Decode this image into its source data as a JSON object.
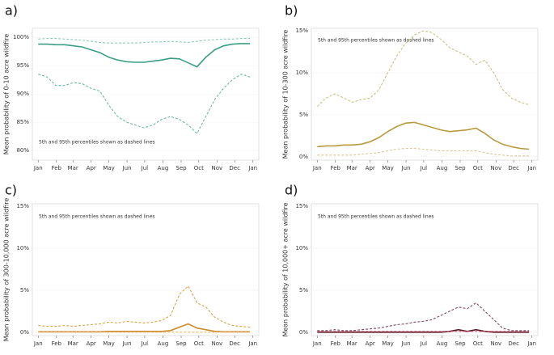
{
  "chart_data": [
    {
      "type": "line",
      "label": "a)",
      "y_label": "Mean probability of 0-10 acre wildfire",
      "annotation": "5th and 95th percentiles shown as dashed lines",
      "x": [
        0,
        15,
        30,
        45,
        60,
        75,
        90,
        105,
        120,
        135,
        150,
        165,
        180,
        195,
        210,
        225,
        240,
        255,
        270,
        285,
        300,
        315,
        330,
        345,
        360
      ],
      "xlim": [
        -10,
        375
      ],
      "xticks": [
        {
          "value": 0,
          "label": "Jan"
        },
        {
          "value": 31,
          "label": "Feb"
        },
        {
          "value": 59,
          "label": "Mar"
        },
        {
          "value": 90,
          "label": "Apr"
        },
        {
          "value": 120,
          "label": "May"
        },
        {
          "value": 151,
          "label": "Jun"
        },
        {
          "value": 181,
          "label": "Jul"
        },
        {
          "value": 212,
          "label": "Aug"
        },
        {
          "value": 243,
          "label": "Sep"
        },
        {
          "value": 273,
          "label": "Oct"
        },
        {
          "value": 304,
          "label": "Nov"
        },
        {
          "value": 334,
          "label": "Dec"
        },
        {
          "value": 365,
          "label": "Jan"
        }
      ],
      "ylim": [
        78.3,
        101.6
      ],
      "yticks": [
        {
          "value": 80,
          "label": "80%"
        },
        {
          "value": 85,
          "label": "85%"
        },
        {
          "value": 90,
          "label": "90%"
        },
        {
          "value": 95,
          "label": "95%"
        },
        {
          "value": 100,
          "label": "100%"
        }
      ],
      "grid": true,
      "series": [
        {
          "color": "#8ccbbd",
          "dashed": true,
          "values": [
            99.7,
            99.8,
            99.8,
            99.7,
            99.6,
            99.5,
            99.3,
            99.1,
            99.0,
            99.0,
            99.0,
            99.0,
            99.1,
            99.2,
            99.2,
            99.3,
            99.2,
            99.1,
            99.3,
            99.5,
            99.6,
            99.7,
            99.7,
            99.8,
            99.8
          ]
        },
        {
          "color": "#3a9e86",
          "dashed": false,
          "values": [
            98.8,
            98.8,
            98.7,
            98.7,
            98.5,
            98.3,
            97.8,
            97.3,
            96.5,
            96.0,
            95.7,
            95.6,
            95.6,
            95.8,
            96.0,
            96.3,
            96.2,
            95.5,
            94.8,
            96.5,
            97.8,
            98.5,
            98.8,
            98.9,
            98.9
          ]
        },
        {
          "color": "#6db8a8",
          "dashed": true,
          "values": [
            93.5,
            93.0,
            91.5,
            91.5,
            92.0,
            91.8,
            91.0,
            90.5,
            88.0,
            86.0,
            85.0,
            84.5,
            84.0,
            84.5,
            85.5,
            86.0,
            85.5,
            84.5,
            83.0,
            86.0,
            89.0,
            91.0,
            92.5,
            93.5,
            93.0
          ]
        }
      ]
    },
    {
      "type": "line",
      "label": "b)",
      "y_label": "Mean probability of 10-300 acre wildfire",
      "annotation": "5th and 95th percentiles shown as dashed lines",
      "x": [
        0,
        15,
        30,
        45,
        60,
        75,
        90,
        105,
        120,
        135,
        150,
        165,
        180,
        195,
        210,
        225,
        240,
        255,
        270,
        285,
        300,
        315,
        330,
        345,
        360
      ],
      "xlim": [
        -10,
        375
      ],
      "xticks": [
        {
          "value": 0,
          "label": "Jan"
        },
        {
          "value": 31,
          "label": "Feb"
        },
        {
          "value": 59,
          "label": "Mar"
        },
        {
          "value": 90,
          "label": "Apr"
        },
        {
          "value": 120,
          "label": "May"
        },
        {
          "value": 151,
          "label": "Jun"
        },
        {
          "value": 181,
          "label": "Jul"
        },
        {
          "value": 212,
          "label": "Aug"
        },
        {
          "value": 243,
          "label": "Sep"
        },
        {
          "value": 273,
          "label": "Oct"
        },
        {
          "value": 304,
          "label": "Nov"
        },
        {
          "value": 334,
          "label": "Dec"
        },
        {
          "value": 365,
          "label": "Jan"
        }
      ],
      "ylim": [
        -0.4,
        15.3
      ],
      "yticks": [
        {
          "value": 0,
          "label": "0%"
        },
        {
          "value": 5,
          "label": "5%"
        },
        {
          "value": 10,
          "label": "10%"
        },
        {
          "value": 15,
          "label": "15%"
        }
      ],
      "grid": true,
      "series": [
        {
          "color": "#c9c27e",
          "dashed": true,
          "values": [
            6,
            7,
            7.5,
            7,
            6.5,
            6.8,
            7,
            8,
            10,
            12,
            13.5,
            14.5,
            15,
            14.8,
            14,
            13,
            12.5,
            12,
            11,
            11.5,
            10,
            8,
            7,
            6.5,
            6.2
          ]
        },
        {
          "color": "#b89a3e",
          "dashed": false,
          "values": [
            1.2,
            1.3,
            1.3,
            1.4,
            1.4,
            1.5,
            1.8,
            2.3,
            3.0,
            3.6,
            4,
            4.1,
            3.8,
            3.5,
            3.2,
            3.0,
            3.1,
            3.2,
            3.4,
            2.8,
            2.0,
            1.5,
            1.2,
            1.0,
            0.9
          ]
        },
        {
          "color": "#dcc99a",
          "dashed": true,
          "values": [
            0.2,
            0.2,
            0.2,
            0.2,
            0.2,
            0.3,
            0.4,
            0.5,
            0.7,
            0.9,
            1.0,
            1.0,
            0.9,
            0.8,
            0.7,
            0.7,
            0.7,
            0.7,
            0.7,
            0.5,
            0.3,
            0.2,
            0.1,
            0.1,
            0.1
          ]
        }
      ]
    },
    {
      "type": "line",
      "label": "c)",
      "y_label": "Mean probability of 300-10,000 acre wildfire",
      "annotation": "5th and 95th percentiles shown as dashed lines",
      "x": [
        0,
        15,
        30,
        45,
        60,
        75,
        90,
        105,
        120,
        135,
        150,
        165,
        180,
        195,
        210,
        225,
        240,
        255,
        270,
        285,
        300,
        315,
        330,
        345,
        360
      ],
      "xlim": [
        -10,
        375
      ],
      "xticks": [
        {
          "value": 0,
          "label": "Jan"
        },
        {
          "value": 31,
          "label": "Feb"
        },
        {
          "value": 59,
          "label": "Mar"
        },
        {
          "value": 90,
          "label": "Apr"
        },
        {
          "value": 120,
          "label": "May"
        },
        {
          "value": 151,
          "label": "Jun"
        },
        {
          "value": 181,
          "label": "Jul"
        },
        {
          "value": 212,
          "label": "Aug"
        },
        {
          "value": 243,
          "label": "Sep"
        },
        {
          "value": 273,
          "label": "Oct"
        },
        {
          "value": 304,
          "label": "Nov"
        },
        {
          "value": 334,
          "label": "Dec"
        },
        {
          "value": 365,
          "label": "Jan"
        }
      ],
      "ylim": [
        -0.4,
        15.3
      ],
      "yticks": [
        {
          "value": 0,
          "label": "0%"
        },
        {
          "value": 5,
          "label": "5%"
        },
        {
          "value": 10,
          "label": "10%"
        },
        {
          "value": 15,
          "label": "15%"
        }
      ],
      "grid": true,
      "series": [
        {
          "color": "#d9a64a",
          "dashed": true,
          "values": [
            0.8,
            0.7,
            0.7,
            0.8,
            0.7,
            0.8,
            0.9,
            1.0,
            1.2,
            1.1,
            1.3,
            1.2,
            1.1,
            1.2,
            1.4,
            2.0,
            4.5,
            5.5,
            3.5,
            3.0,
            1.8,
            1.2,
            0.8,
            0.7,
            0.6
          ]
        },
        {
          "color": "#d08a2a",
          "dashed": false,
          "values": [
            0.05,
            0.05,
            0.05,
            0.05,
            0.05,
            0.05,
            0.05,
            0.05,
            0.1,
            0.1,
            0.1,
            0.1,
            0.1,
            0.1,
            0.1,
            0.2,
            0.6,
            1.0,
            0.5,
            0.3,
            0.1,
            0.05,
            0.05,
            0.05,
            0.05
          ]
        },
        {
          "color": "#e8b870",
          "dashed": true,
          "values": [
            0,
            0,
            0,
            0,
            0,
            0,
            0,
            0,
            0,
            0,
            0,
            0,
            0,
            0,
            0,
            0,
            0,
            0,
            0,
            0,
            0,
            0,
            0,
            0,
            0
          ]
        }
      ]
    },
    {
      "type": "line",
      "label": "d)",
      "y_label": "Mean probability of 10,000+ acre wildfire",
      "annotation": "5th and 95th percentiles shown as dashed lines",
      "x": [
        0,
        15,
        30,
        45,
        60,
        75,
        90,
        105,
        120,
        135,
        150,
        165,
        180,
        195,
        210,
        225,
        240,
        255,
        270,
        285,
        300,
        315,
        330,
        345,
        360
      ],
      "xlim": [
        -10,
        375
      ],
      "xticks": [
        {
          "value": 0,
          "label": "Jan"
        },
        {
          "value": 31,
          "label": "Feb"
        },
        {
          "value": 59,
          "label": "Mar"
        },
        {
          "value": 90,
          "label": "Apr"
        },
        {
          "value": 120,
          "label": "May"
        },
        {
          "value": 151,
          "label": "Jun"
        },
        {
          "value": 181,
          "label": "Jul"
        },
        {
          "value": 212,
          "label": "Aug"
        },
        {
          "value": 243,
          "label": "Sep"
        },
        {
          "value": 273,
          "label": "Oct"
        },
        {
          "value": 304,
          "label": "Nov"
        },
        {
          "value": 334,
          "label": "Dec"
        },
        {
          "value": 365,
          "label": "Jan"
        }
      ],
      "ylim": [
        -0.4,
        15.3
      ],
      "yticks": [
        {
          "value": 0,
          "label": "0%"
        },
        {
          "value": 5,
          "label": "5%"
        },
        {
          "value": 10,
          "label": "10%"
        },
        {
          "value": 15,
          "label": "15%"
        }
      ],
      "grid": true,
      "series": [
        {
          "color": "#7a4a66",
          "dashed": true,
          "values": [
            0.2,
            0.2,
            0.3,
            0.2,
            0.2,
            0.3,
            0.4,
            0.5,
            0.7,
            0.9,
            1.0,
            1.2,
            1.3,
            1.5,
            2.0,
            2.5,
            3.0,
            2.8,
            3.5,
            2.5,
            1.5,
            0.5,
            0.2,
            0.2,
            0.2
          ]
        },
        {
          "color": "#5a1a2a",
          "dashed": false,
          "values": [
            0,
            0,
            0,
            0,
            0,
            0,
            0,
            0,
            0,
            0,
            0,
            0,
            0,
            0,
            0,
            0.1,
            0.3,
            0.1,
            0.3,
            0.1,
            0,
            0,
            0,
            0,
            0
          ]
        },
        {
          "color": "#e05060",
          "dashed": true,
          "values": [
            0.1,
            0.1,
            0.1,
            0.1,
            0.1,
            0.1,
            0.1,
            0.1,
            0.1,
            0.1,
            0.1,
            0.1,
            0.1,
            0.1,
            0.1,
            0.1,
            0.1,
            0.1,
            0.1,
            0.1,
            0.1,
            0.1,
            0.1,
            0.1,
            0.1
          ]
        }
      ]
    }
  ]
}
